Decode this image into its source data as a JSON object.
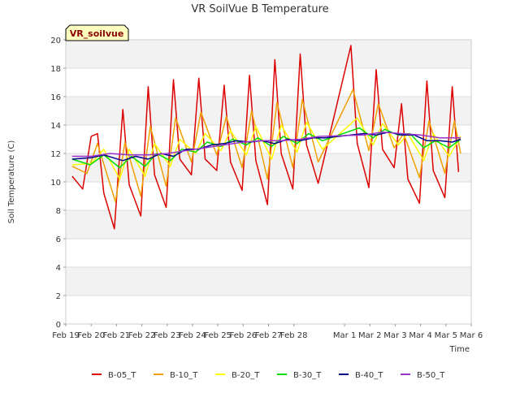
{
  "chart_data": {
    "type": "line",
    "title": "VR SoilVue B Temperature",
    "xlabel": "Time",
    "ylabel": "Soil Temperature (C)",
    "annotation": "VR_soilvue",
    "ylim": [
      0,
      20
    ],
    "yticks": [
      0,
      2,
      4,
      6,
      8,
      10,
      12,
      14,
      16,
      18,
      20
    ],
    "xlim": [
      "2024-02-19",
      "2024-03-06"
    ],
    "xticks": [
      {
        "date": "2024-02-19",
        "label": "Feb 19"
      },
      {
        "date": "2024-02-20",
        "label": "Feb 20"
      },
      {
        "date": "2024-02-21",
        "label": "Feb 21"
      },
      {
        "date": "2024-02-22",
        "label": "Feb 22"
      },
      {
        "date": "2024-02-23",
        "label": "Feb 23"
      },
      {
        "date": "2024-02-24",
        "label": "Feb 24"
      },
      {
        "date": "2024-02-25",
        "label": "Feb 25"
      },
      {
        "date": "2024-02-26",
        "label": "Feb 26"
      },
      {
        "date": "2024-02-27",
        "label": "Feb 27"
      },
      {
        "date": "2024-02-28",
        "label": "Feb 28"
      },
      {
        "date": "2024-03-01",
        "label": "Mar 1"
      },
      {
        "date": "2024-03-02",
        "label": "Mar 2"
      },
      {
        "date": "2024-03-03",
        "label": "Mar 3"
      },
      {
        "date": "2024-03-04",
        "label": "Mar 4"
      },
      {
        "date": "2024-03-05",
        "label": "Mar 5"
      },
      {
        "date": "2024-03-06",
        "label": "Mar 6"
      }
    ],
    "grid": true,
    "legend_position": "bottom",
    "series": [
      {
        "name": "B-05_T",
        "color": "#dd0000",
        "x": [
          "2024-02-19 06:00",
          "2024-02-19 16:00",
          "2024-02-20 00:00",
          "2024-02-20 06:00",
          "2024-02-20 12:00",
          "2024-02-20 22:00",
          "2024-02-21 06:00",
          "2024-02-21 12:00",
          "2024-02-21 23:00",
          "2024-02-22 06:00",
          "2024-02-22 12:00",
          "2024-02-22 23:00",
          "2024-02-23 06:00",
          "2024-02-23 12:00",
          "2024-02-23 23:00",
          "2024-02-24 06:00",
          "2024-02-24 12:00",
          "2024-02-24 23:00",
          "2024-02-25 06:00",
          "2024-02-25 12:00",
          "2024-02-25 23:00",
          "2024-02-26 06:00",
          "2024-02-26 12:00",
          "2024-02-26 23:00",
          "2024-02-27 06:00",
          "2024-02-27 12:00",
          "2024-02-27 23:00",
          "2024-02-28 06:00",
          "2024-02-28 12:00",
          "2024-02-28 23:00",
          "2024-03-01 06:00",
          "2024-03-01 12:00",
          "2024-03-01 23:00",
          "2024-03-02 06:00",
          "2024-03-02 12:00",
          "2024-03-02 23:00",
          "2024-03-03 06:00",
          "2024-03-03 12:00",
          "2024-03-03 23:00",
          "2024-03-04 06:00",
          "2024-03-04 12:00",
          "2024-03-04 23:00",
          "2024-03-05 06:00",
          "2024-03-05 12:00"
        ],
        "y": [
          10.4,
          9.5,
          13.2,
          13.4,
          9.2,
          6.7,
          15.1,
          9.8,
          7.6,
          16.7,
          10.5,
          8.2,
          17.2,
          11.6,
          10.5,
          17.3,
          11.6,
          10.8,
          16.8,
          11.4,
          9.4,
          17.5,
          11.5,
          8.4,
          18.6,
          12.0,
          9.5,
          19.0,
          12.6,
          9.9,
          19.6,
          12.7,
          9.6,
          17.9,
          12.3,
          11.0,
          15.5,
          10.2,
          8.5,
          17.1,
          10.8,
          8.9,
          16.7,
          10.7
        ]
      },
      {
        "name": "B-10_T",
        "color": "#f0a000",
        "x": [
          "2024-02-19 06:00",
          "2024-02-19 20:00",
          "2024-02-20 06:00",
          "2024-02-20 23:00",
          "2024-02-21 08:00",
          "2024-02-21 23:00",
          "2024-02-22 08:00",
          "2024-02-22 23:00",
          "2024-02-23 08:00",
          "2024-02-23 23:00",
          "2024-02-24 08:00",
          "2024-02-24 23:00",
          "2024-02-25 08:00",
          "2024-02-25 23:00",
          "2024-02-26 08:00",
          "2024-02-26 23:00",
          "2024-02-27 08:00",
          "2024-02-27 23:00",
          "2024-02-28 08:00",
          "2024-02-28 23:00",
          "2024-03-01 08:00",
          "2024-03-01 23:00",
          "2024-03-02 08:00",
          "2024-03-02 23:00",
          "2024-03-03 08:00",
          "2024-03-03 23:00",
          "2024-03-04 08:00",
          "2024-03-04 23:00",
          "2024-03-05 08:00",
          "2024-03-05 14:00"
        ],
        "y": [
          11.1,
          10.6,
          12.7,
          8.6,
          12.8,
          9.0,
          13.9,
          9.7,
          14.5,
          11.4,
          14.9,
          11.9,
          14.6,
          11.0,
          15.0,
          10.2,
          15.6,
          11.0,
          15.8,
          11.4,
          16.5,
          12.2,
          15.5,
          12.4,
          13.4,
          10.3,
          14.3,
          10.6,
          14.3,
          12.0
        ]
      },
      {
        "name": "B-20_T",
        "color": "#ffff00",
        "x": [
          "2024-02-19 06:00",
          "2024-02-20 00:00",
          "2024-02-20 12:00",
          "2024-02-21 03:00",
          "2024-02-21 12:00",
          "2024-02-22 03:00",
          "2024-02-22 12:00",
          "2024-02-23 03:00",
          "2024-02-23 12:00",
          "2024-02-24 03:00",
          "2024-02-24 12:00",
          "2024-02-25 03:00",
          "2024-02-25 12:00",
          "2024-02-26 03:00",
          "2024-02-26 12:00",
          "2024-02-27 03:00",
          "2024-02-27 12:00",
          "2024-02-28 03:00",
          "2024-02-28 12:00",
          "2024-02-29 03:00",
          "2024-03-01 12:00",
          "2024-03-02 03:00",
          "2024-03-02 12:00",
          "2024-03-03 03:00",
          "2024-03-03 12:00",
          "2024-03-04 03:00",
          "2024-03-04 12:00",
          "2024-03-05 03:00",
          "2024-03-05 14:00"
        ],
        "y": [
          11.2,
          11.3,
          12.3,
          10.2,
          12.3,
          10.4,
          12.7,
          11.1,
          13.0,
          12.0,
          13.4,
          12.2,
          13.6,
          11.9,
          13.9,
          11.6,
          14.0,
          12.1,
          14.2,
          12.3,
          14.5,
          12.6,
          14.1,
          12.6,
          13.4,
          11.5,
          13.4,
          11.8,
          13.2
        ]
      },
      {
        "name": "B-30_T",
        "color": "#00dd00",
        "x": [
          "2024-02-19 06:00",
          "2024-02-19 23:00",
          "2024-02-20 12:00",
          "2024-02-21 03:00",
          "2024-02-21 14:00",
          "2024-02-22 03:00",
          "2024-02-22 14:00",
          "2024-02-23 03:00",
          "2024-02-23 14:00",
          "2024-02-24 03:00",
          "2024-02-24 14:00",
          "2024-02-25 03:00",
          "2024-02-25 14:00",
          "2024-02-26 03:00",
          "2024-02-26 14:00",
          "2024-02-27 03:00",
          "2024-02-27 14:00",
          "2024-02-28 03:00",
          "2024-02-28 14:00",
          "2024-02-29 03:00",
          "2024-03-01 14:00",
          "2024-03-02 03:00",
          "2024-03-02 14:00",
          "2024-03-03 03:00",
          "2024-03-03 14:00",
          "2024-03-04 03:00",
          "2024-03-04 14:00",
          "2024-03-05 03:00",
          "2024-03-05 14:00"
        ],
        "y": [
          11.6,
          11.2,
          11.9,
          11.0,
          11.8,
          11.1,
          12.0,
          11.5,
          12.3,
          12.1,
          12.8,
          12.5,
          13.0,
          12.6,
          13.1,
          12.5,
          13.2,
          12.7,
          13.4,
          12.9,
          13.8,
          13.1,
          13.7,
          13.3,
          13.4,
          12.4,
          12.9,
          12.4,
          13.0
        ]
      },
      {
        "name": "B-40_T",
        "color": "#00008b",
        "x": [
          "2024-02-19 06:00",
          "2024-02-20 00:00",
          "2024-02-20 12:00",
          "2024-02-21 06:00",
          "2024-02-21 18:00",
          "2024-02-22 06:00",
          "2024-02-22 18:00",
          "2024-02-23 06:00",
          "2024-02-23 18:00",
          "2024-02-24 06:00",
          "2024-02-24 18:00",
          "2024-02-25 06:00",
          "2024-02-25 18:00",
          "2024-02-26 06:00",
          "2024-02-26 18:00",
          "2024-02-27 06:00",
          "2024-02-27 18:00",
          "2024-02-28 06:00",
          "2024-02-28 18:00",
          "2024-02-29 06:00",
          "2024-03-01 18:00",
          "2024-03-02 06:00",
          "2024-03-02 18:00",
          "2024-03-03 06:00",
          "2024-03-03 18:00",
          "2024-03-04 06:00",
          "2024-03-04 18:00",
          "2024-03-05 06:00",
          "2024-03-05 14:00"
        ],
        "y": [
          11.6,
          11.7,
          11.9,
          11.5,
          11.8,
          11.6,
          12.0,
          11.8,
          12.3,
          12.3,
          12.6,
          12.7,
          12.9,
          12.8,
          12.9,
          12.7,
          13.0,
          12.9,
          13.1,
          13.1,
          13.4,
          13.3,
          13.5,
          13.3,
          13.3,
          12.9,
          12.9,
          12.8,
          13.0
        ]
      },
      {
        "name": "B-50_T",
        "color": "#9932cc",
        "x": [
          "2024-02-19 06:00",
          "2024-02-20 00:00",
          "2024-02-20 18:00",
          "2024-02-21 12:00",
          "2024-02-22 06:00",
          "2024-02-23 00:00",
          "2024-02-23 18:00",
          "2024-02-24 12:00",
          "2024-02-25 06:00",
          "2024-02-26 00:00",
          "2024-02-26 18:00",
          "2024-02-27 12:00",
          "2024-02-28 06:00",
          "2024-02-29 00:00",
          "2024-03-01 18:00",
          "2024-03-02 12:00",
          "2024-03-03 06:00",
          "2024-03-04 00:00",
          "2024-03-04 18:00",
          "2024-03-05 14:00"
        ],
        "y": [
          11.8,
          11.8,
          12.0,
          11.9,
          11.9,
          12.0,
          12.2,
          12.4,
          12.6,
          12.8,
          12.9,
          12.9,
          13.0,
          13.2,
          13.3,
          13.5,
          13.4,
          13.3,
          13.1,
          13.1
        ]
      }
    ]
  }
}
